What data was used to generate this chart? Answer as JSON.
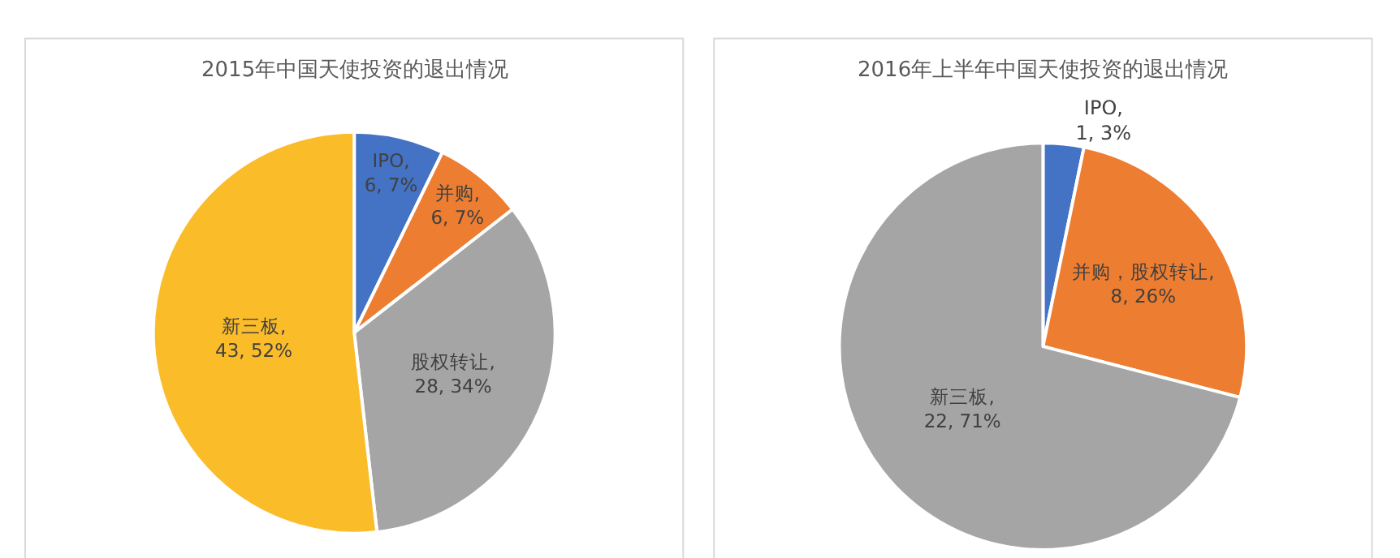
{
  "chart_data": [
    {
      "type": "pie",
      "title": "2015年中国天使投资的退出情况",
      "categories": [
        "IPO",
        "并购",
        "股权转让",
        "新三板"
      ],
      "values": [
        6,
        6,
        28,
        43
      ],
      "colors": [
        "#4472c4",
        "#ed7d31",
        "#a5a5a5",
        "#fbbc2a"
      ],
      "value_labels": [
        ", 6, 7%",
        ", 6, 7%",
        ", 28, 34%",
        ", 43, 52%"
      ]
    },
    {
      "type": "pie",
      "title": "2016年上半年中国天使投资的退出情况",
      "categories": [
        "IPO",
        "并购，股权转让",
        "新三板"
      ],
      "values": [
        1,
        8,
        22
      ],
      "colors": [
        "#4472c4",
        "#ed7d31",
        "#a5a5a5"
      ],
      "value_labels": [
        ", 1, 3%",
        ", 8, 26%",
        ", 22, 71%"
      ]
    }
  ]
}
